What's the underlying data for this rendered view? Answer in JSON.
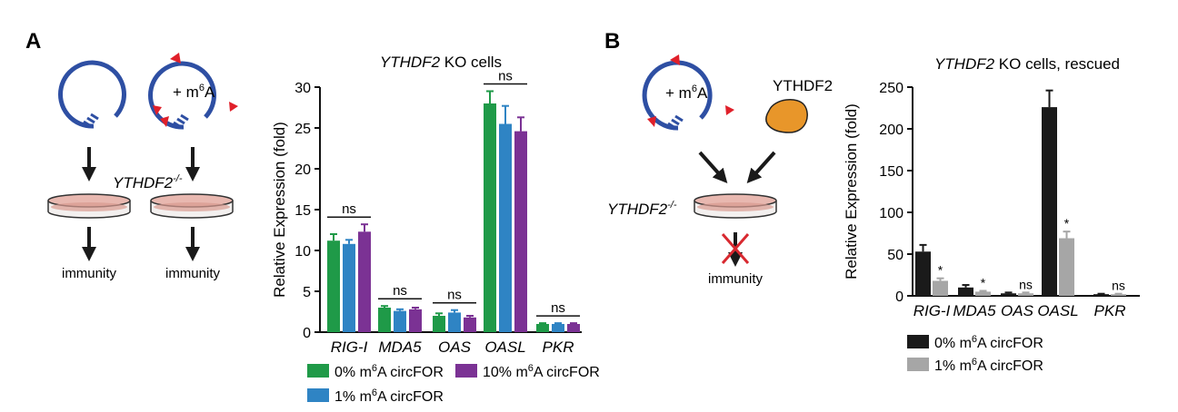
{
  "panels": {
    "a": {
      "letter": "A",
      "genotype": "YTHDF2",
      "genotype_sup": "-/-",
      "m6a_label": "+ m",
      "m6a_sup": "6",
      "m6a_tail": "A",
      "outcome_left": "immunity",
      "outcome_right": "immunity"
    },
    "b": {
      "letter": "B",
      "protein": "YTHDF2",
      "genotype": "YTHDF2",
      "genotype_sup": "-/-",
      "m6a_label": "+ m",
      "m6a_sup": "6",
      "m6a_tail": "A",
      "outcome": "immunity"
    }
  },
  "colors": {
    "green": "#1f9a48",
    "blue": "#2f84c4",
    "purple": "#7b3294",
    "black": "#1a1a1a",
    "gray": "#a6a6a6",
    "plasmid": "#2e4fa3",
    "tag": "#e0202a",
    "protein": "#e8962a",
    "dish_fill": "#e8b8b0",
    "cross": "#d8282f"
  },
  "chart_data": [
    {
      "type": "bar",
      "title": "KO cells",
      "title_italic": "YTHDF2",
      "ylabel": "Relative Expression (fold)",
      "ylim": [
        0,
        30
      ],
      "yticks": [
        0,
        5,
        10,
        15,
        20,
        25,
        30
      ],
      "categories": [
        "RIG-I",
        "MDA5",
        "OAS",
        "OASL",
        "PKR"
      ],
      "series": [
        {
          "name": "0% m6A circFOR",
          "values": [
            11.2,
            3.0,
            2.0,
            28.0,
            1.0
          ],
          "errors": [
            0.8,
            0.2,
            0.3,
            1.5,
            0.1
          ]
        },
        {
          "name": "1% m6A circFOR",
          "values": [
            10.8,
            2.6,
            2.4,
            25.5,
            1.0
          ],
          "errors": [
            0.5,
            0.2,
            0.3,
            2.2,
            0.1
          ]
        },
        {
          "name": "10% m6A circFOR",
          "values": [
            12.3,
            2.8,
            1.8,
            24.6,
            1.0
          ],
          "errors": [
            0.9,
            0.2,
            0.2,
            1.7,
            0.1
          ]
        }
      ],
      "annotations": [
        "ns",
        "ns",
        "ns",
        "ns",
        "ns"
      ],
      "legend": [
        {
          "pre": "0% m",
          "sup": "6",
          "post": "A circFOR"
        },
        {
          "pre": "10% m",
          "sup": "6",
          "post": "A circFOR"
        },
        {
          "pre": "1% m",
          "sup": "6",
          "post": "A circFOR"
        }
      ],
      "grid": false,
      "legend_position": "bottom"
    },
    {
      "type": "bar",
      "title": "KO cells, rescued",
      "title_italic": "YTHDF2",
      "ylabel": "Relative Expression (fold)",
      "ylim": [
        0,
        250
      ],
      "yticks": [
        0,
        50,
        100,
        150,
        200,
        250
      ],
      "categories": [
        "RIG-I",
        "MDA5",
        "OAS",
        "OASL",
        "PKR"
      ],
      "series": [
        {
          "name": "0% m6A circFOR",
          "values": [
            53,
            10,
            3,
            226,
            2
          ],
          "errors": [
            8,
            3,
            1,
            20,
            0.5
          ]
        },
        {
          "name": "1% m6A circFOR",
          "values": [
            18,
            5,
            3,
            69,
            2
          ],
          "errors": [
            3,
            1,
            1,
            8,
            0.5
          ]
        }
      ],
      "annotations": [
        "*",
        "*",
        "ns",
        "*",
        "ns"
      ],
      "legend": [
        {
          "pre": "0% m",
          "sup": "6",
          "post": "A circFOR"
        },
        {
          "pre": "1% m",
          "sup": "6",
          "post": "A circFOR"
        }
      ],
      "grid": false,
      "legend_position": "bottom"
    }
  ]
}
